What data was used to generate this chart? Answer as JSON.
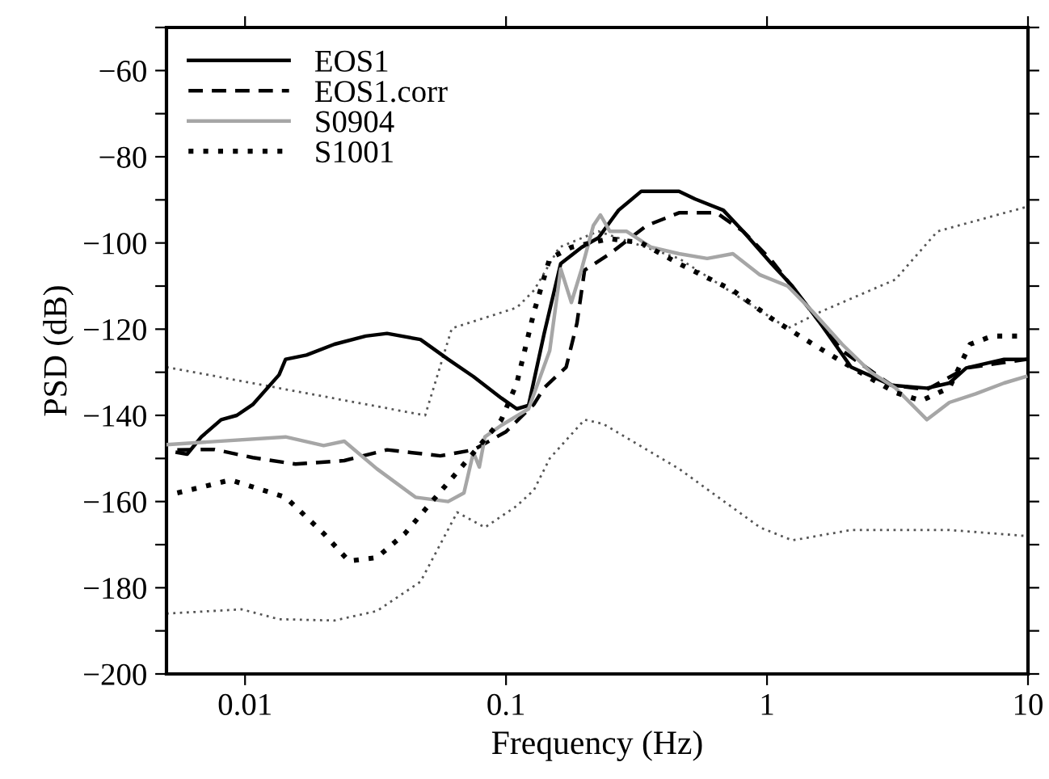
{
  "chart_data": {
    "type": "line",
    "xlabel": "Frequency (Hz)",
    "ylabel": "PSD (dB)",
    "log": "x",
    "xlim": [
      0.005,
      10
    ],
    "xticks": [
      0.01,
      0.1,
      1,
      10
    ],
    "ylim": [
      -200,
      -50
    ],
    "yticks": [
      -200,
      {
        "value": -190,
        "label": null
      },
      -180,
      {
        "value": -170,
        "label": null
      },
      -160,
      {
        "value": -150,
        "label": null
      },
      -140,
      {
        "value": -130,
        "label": null
      },
      -120,
      {
        "value": -110,
        "label": null
      },
      -100,
      {
        "value": -90,
        "label": null
      },
      -80,
      {
        "value": -70,
        "label": null
      },
      -60,
      {
        "value": -50,
        "label": null
      }
    ],
    "grid": false,
    "legend": "top left",
    "marker": "none",
    "series": [
      {
        "name": "EOS1",
        "color": "#000000",
        "line_style": "solid",
        "x": [
          0.0055,
          0.006,
          0.0068,
          0.0081,
          0.0093,
          0.0107,
          0.0135,
          0.0143,
          0.0172,
          0.022,
          0.029,
          0.035,
          0.047,
          0.06,
          0.075,
          0.096,
          0.11,
          0.122,
          0.14,
          0.162,
          0.195,
          0.226,
          0.27,
          0.33,
          0.46,
          0.53,
          0.68,
          0.81,
          1.04,
          1.25,
          1.6,
          2.1,
          3.0,
          4.1,
          5.0,
          5.8,
          8.1,
          9.9
        ],
        "values": [
          -148.6,
          -149,
          -145,
          -141,
          -140,
          -137.5,
          -130.6,
          -127,
          -126,
          -123.5,
          -121.6,
          -121,
          -122.4,
          -127,
          -131,
          -136,
          -138.5,
          -137.7,
          -121,
          -104.8,
          -101,
          -98.8,
          -92.4,
          -88,
          -88,
          -89.8,
          -92.4,
          -97.3,
          -104.8,
          -110,
          -118.6,
          -128.8,
          -133,
          -133.7,
          -132.5,
          -129,
          -127,
          -127
        ]
      },
      {
        "name": "EOS1.corr",
        "color": "#000000",
        "line_style": "dashed",
        "x": [
          0.0055,
          0.0076,
          0.0107,
          0.0156,
          0.024,
          0.035,
          0.056,
          0.075,
          0.1,
          0.128,
          0.14,
          0.17,
          0.187,
          0.2,
          0.25,
          0.345,
          0.46,
          0.64,
          0.81,
          1.04,
          1.39,
          1.94,
          3.0,
          4.1,
          5.8,
          9.9
        ],
        "values": [
          -148,
          -147.9,
          -149.8,
          -151.3,
          -150.5,
          -148,
          -149.4,
          -148,
          -143.8,
          -137.4,
          -133.6,
          -128.8,
          -118.6,
          -106.3,
          -102.5,
          -96,
          -93,
          -93,
          -97.3,
          -104,
          -113.8,
          -125,
          -133,
          -134,
          -129,
          -127
        ]
      },
      {
        "name": "S0904",
        "color": "#a6a6a6",
        "line_style": "solid",
        "x": [
          0.005,
          0.0143,
          0.02,
          0.024,
          0.032,
          0.045,
          0.06,
          0.069,
          0.075,
          0.079,
          0.083,
          0.096,
          0.122,
          0.147,
          0.162,
          0.178,
          0.195,
          0.216,
          0.23,
          0.25,
          0.29,
          0.36,
          0.46,
          0.59,
          0.74,
          0.94,
          1.2,
          1.5,
          1.94,
          2.5,
          3.1,
          4.1,
          5.0,
          6.3,
          8.1,
          9.8
        ],
        "values": [
          -146.8,
          -145,
          -147,
          -146,
          -152.4,
          -159,
          -160,
          -158,
          -148.6,
          -152,
          -145,
          -142.3,
          -138.5,
          -125,
          -106,
          -113.8,
          -106,
          -96,
          -93.5,
          -97.3,
          -97.3,
          -101,
          -102.5,
          -103.6,
          -102.5,
          -107.4,
          -110,
          -116,
          -123.5,
          -130,
          -133.6,
          -141,
          -137,
          -135,
          -132.5,
          -131
        ]
      },
      {
        "name": "S1001",
        "color": "#000000",
        "line_style": "dotted",
        "x": [
          0.0055,
          0.0088,
          0.0143,
          0.02,
          0.025,
          0.032,
          0.041,
          0.052,
          0.069,
          0.096,
          0.11,
          0.128,
          0.147,
          0.178,
          0.25,
          0.33,
          0.46,
          0.74,
          1.04,
          1.5,
          2.1,
          3.1,
          3.9,
          5.0,
          6.0,
          7.3,
          9.9
        ],
        "values": [
          -158,
          -155,
          -159,
          -167.4,
          -173.8,
          -173,
          -167.4,
          -160,
          -151.3,
          -141,
          -132.5,
          -116,
          -103.6,
          -101,
          -99,
          -100,
          -104.8,
          -111,
          -117.5,
          -123.5,
          -128.8,
          -134.7,
          -136.6,
          -133.6,
          -123.5,
          -121.6,
          -121.6
        ]
      },
      {
        "color": "#555555",
        "line_style": "dotted",
        "x": [
          0.005,
          0.049,
          0.062,
          0.11,
          0.128,
          0.16,
          0.226,
          0.46,
          1.2,
          1.6,
          3.1,
          4.5,
          9.9
        ],
        "values": [
          -128.8,
          -140,
          -119.8,
          -115,
          -111,
          -101,
          -97.3,
          -103.6,
          -119.8,
          -116,
          -108.5,
          -97.3,
          -91.6
        ]
      },
      {
        "color": "#555555",
        "line_style": "dotted",
        "x": [
          0.005,
          0.0097,
          0.0135,
          0.022,
          0.032,
          0.047,
          0.065,
          0.083,
          0.11,
          0.128,
          0.147,
          0.2,
          0.236,
          0.46,
          0.94,
          1.25,
          2.1,
          5.0,
          9.9
        ],
        "values": [
          -186,
          -185,
          -187.3,
          -187.6,
          -185.4,
          -178.6,
          -162.5,
          -166,
          -161,
          -157.3,
          -150,
          -141,
          -142,
          -152.4,
          -166,
          -169,
          -166.6,
          -166.6,
          -168
        ]
      }
    ]
  }
}
